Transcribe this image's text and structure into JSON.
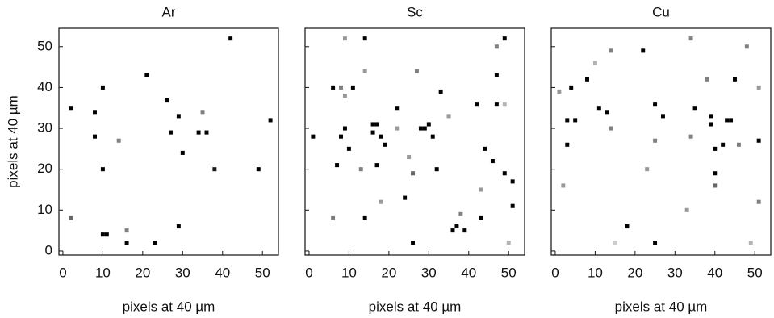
{
  "chart_data": [
    {
      "type": "scatter",
      "title": "Ar",
      "xlabel": "pixels at 40 µm",
      "ylabel": "pixels at 40 µm",
      "ytick_labels": true,
      "xlim": [
        -1,
        54
      ],
      "ylim": [
        -1,
        54.5
      ],
      "xticks": [
        0,
        10,
        20,
        30,
        40,
        50
      ],
      "yticks": [
        0,
        10,
        20,
        30,
        40,
        50
      ],
      "x": [
        2,
        2,
        8,
        8,
        10,
        10,
        10,
        11,
        14,
        16,
        16,
        21,
        23,
        26,
        27,
        29,
        29,
        30,
        34,
        35,
        36,
        38,
        42,
        49,
        52
      ],
      "values": [
        35,
        8,
        34,
        28,
        40,
        20,
        4,
        4,
        27,
        5,
        2,
        43,
        2,
        37,
        29,
        33,
        6,
        24,
        29,
        34,
        29,
        20,
        52,
        20,
        32
      ],
      "intensity": [
        1,
        0.6,
        1,
        1,
        1,
        1,
        1,
        1,
        0.5,
        0.5,
        1,
        1,
        1,
        1,
        1,
        1,
        1,
        1,
        1,
        0.5,
        1,
        0.9,
        1,
        1,
        1
      ]
    },
    {
      "type": "scatter",
      "title": "Sc",
      "xlabel": "pixels at 40 µm",
      "ytick_labels": false,
      "xlim": [
        -1,
        54
      ],
      "ylim": [
        -1,
        54.5
      ],
      "xticks": [
        0,
        10,
        20,
        30,
        40,
        50
      ],
      "yticks": [
        0,
        10,
        20,
        30,
        40,
        50
      ],
      "x": [
        1,
        6,
        6,
        8,
        7,
        8,
        9,
        9,
        9,
        10,
        11,
        13,
        14,
        14,
        14,
        16,
        16,
        17,
        17,
        18,
        19,
        18,
        22,
        22,
        24,
        25,
        26,
        26,
        27,
        28,
        29,
        30,
        31,
        32,
        33,
        35,
        36,
        37,
        38,
        39,
        42,
        43,
        43,
        44,
        46,
        47,
        47,
        47,
        49,
        49,
        49,
        51,
        51,
        50
      ],
      "values": [
        28,
        40,
        8,
        40,
        21,
        28,
        30,
        52,
        38,
        25,
        40,
        20,
        52,
        8,
        44,
        31,
        29,
        31,
        21,
        28,
        26,
        12,
        30,
        35,
        13,
        23,
        2,
        19,
        44,
        30,
        30,
        31,
        28,
        20,
        39,
        33,
        5,
        6,
        9,
        5,
        36,
        8,
        15,
        25,
        22,
        50,
        43,
        36,
        19,
        36,
        52,
        17,
        11,
        2
      ],
      "intensity": [
        1,
        1,
        0.5,
        0.5,
        1,
        1,
        1,
        0.4,
        0.4,
        1,
        1,
        0.5,
        1,
        1,
        0.4,
        1,
        1,
        1,
        1,
        1,
        1,
        0.4,
        0.4,
        1,
        1,
        0.4,
        1,
        0.6,
        0.5,
        1,
        1,
        1,
        1,
        1,
        1,
        0.4,
        1,
        1,
        0.5,
        1,
        1,
        1,
        0.4,
        1,
        1,
        0.5,
        1,
        1,
        1,
        0.3,
        1,
        1,
        1,
        0.3
      ]
    },
    {
      "type": "scatter",
      "title": "Cu",
      "xlabel": "pixels at 40 µm",
      "ytick_labels": false,
      "xlim": [
        -1,
        54
      ],
      "ylim": [
        -1,
        54.5
      ],
      "xticks": [
        0,
        10,
        20,
        30,
        40,
        50
      ],
      "yticks": [
        0,
        10,
        20,
        30,
        40,
        50
      ],
      "x": [
        1,
        4,
        3,
        5,
        3,
        2,
        8,
        10,
        11,
        13,
        14,
        14,
        18,
        15,
        22,
        23,
        25,
        25,
        25,
        27,
        34,
        34,
        35,
        33,
        38,
        39,
        39,
        40,
        40,
        40,
        42,
        43,
        44,
        45,
        46,
        48,
        49,
        51,
        51,
        51
      ],
      "values": [
        39,
        40,
        32,
        32,
        26,
        16,
        42,
        46,
        35,
        34,
        49,
        30,
        6,
        2,
        49,
        20,
        36,
        27,
        2,
        33,
        52,
        28,
        35,
        10,
        42,
        33,
        31,
        25,
        19,
        16,
        26,
        32,
        32,
        42,
        26,
        50,
        2,
        27,
        12,
        40
      ],
      "intensity": [
        0.4,
        1,
        1,
        1,
        1,
        0.4,
        1,
        0.3,
        1,
        1,
        0.5,
        0.5,
        1,
        0.2,
        1,
        0.4,
        1,
        0.5,
        1,
        1,
        0.5,
        0.5,
        1,
        0.4,
        0.5,
        1,
        1,
        1,
        1,
        0.6,
        1,
        1,
        1,
        1,
        0.5,
        0.5,
        0.3,
        1,
        0.5,
        0.4
      ]
    }
  ]
}
